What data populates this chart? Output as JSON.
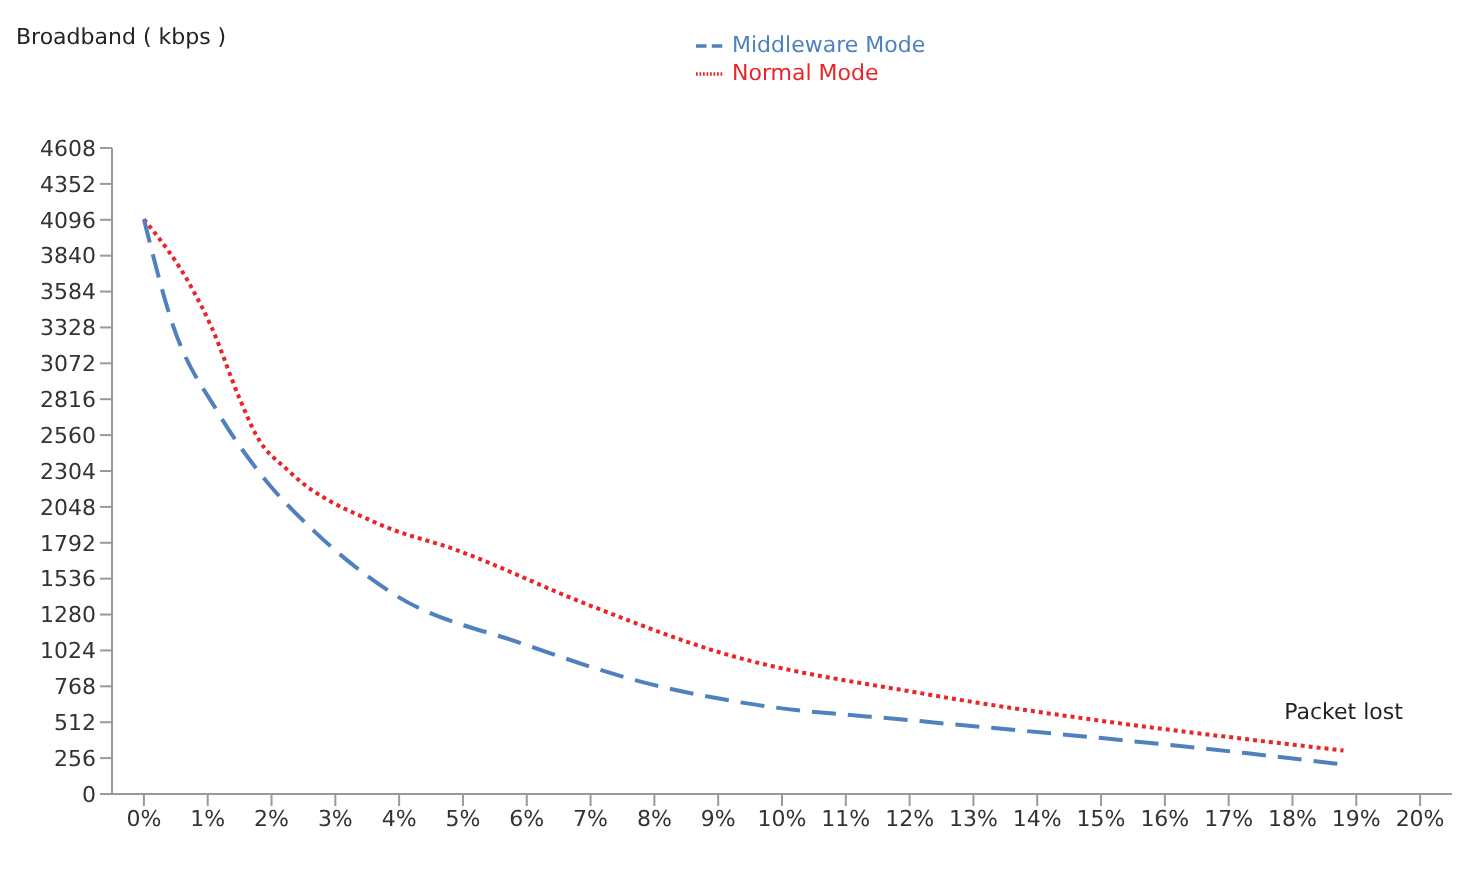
{
  "chart_data": {
    "type": "line",
    "ylabel": "Broadband ( kbps )",
    "legend": "top",
    "grid": false,
    "marker": "none",
    "xlim": [
      -0.5,
      20.5
    ],
    "xticks": [
      {
        "value": 0,
        "label": "0%"
      },
      {
        "value": 1,
        "label": "1%"
      },
      {
        "value": 2,
        "label": "2%"
      },
      {
        "value": 3,
        "label": "3%"
      },
      {
        "value": 4,
        "label": "4%"
      },
      {
        "value": 5,
        "label": "5%"
      },
      {
        "value": 6,
        "label": "6%"
      },
      {
        "value": 7,
        "label": "7%"
      },
      {
        "value": 8,
        "label": "8%"
      },
      {
        "value": 9,
        "label": "9%"
      },
      {
        "value": 10,
        "label": "10%"
      },
      {
        "value": 11,
        "label": "11%"
      },
      {
        "value": 12,
        "label": "12%"
      },
      {
        "value": 13,
        "label": "13%"
      },
      {
        "value": 14,
        "label": "14%"
      },
      {
        "value": 15,
        "label": "15%"
      },
      {
        "value": 16,
        "label": "16%"
      },
      {
        "value": 17,
        "label": "17%"
      },
      {
        "value": 18,
        "label": "18%"
      },
      {
        "value": 19,
        "label": "19%"
      },
      {
        "value": 20,
        "label": "20%"
      }
    ],
    "ylim": [
      0,
      4608
    ],
    "yticks": [
      0,
      256,
      512,
      768,
      1024,
      1280,
      1536,
      1792,
      2048,
      2304,
      2560,
      2816,
      3072,
      3328,
      3584,
      3840,
      4096,
      4352,
      4608
    ],
    "series": [
      {
        "name": "Normal Mode",
        "color": "#e8262a",
        "line_style": "dotted",
        "x": [
          0,
          0.75,
          1.06,
          1.5,
          1.76,
          2.28,
          3.66,
          4.9,
          6.96,
          9.1,
          12.16,
          15.2,
          17.3,
          18.8
        ],
        "values": [
          4100,
          3610,
          3330,
          2820,
          2560,
          2300,
          1930,
          1740,
          1350,
          1000,
          720,
          510,
          390,
          310
        ]
      },
      {
        "name": "Middleware Mode",
        "color": "#4f81bd",
        "line_style": "dashed",
        "x": [
          0,
          0.45,
          1.15,
          1.85,
          2.68,
          3.9,
          5.95,
          7.97,
          9.4,
          12.16,
          15.2,
          17.3,
          18.8
        ],
        "values": [
          4100,
          3350,
          2730,
          2270,
          1870,
          1430,
          1070,
          780,
          650,
          520,
          390,
          290,
          210
        ]
      }
    ],
    "annotations": [
      {
        "text": "Packet lost",
        "x": 18.8,
        "y": 310
      }
    ]
  }
}
